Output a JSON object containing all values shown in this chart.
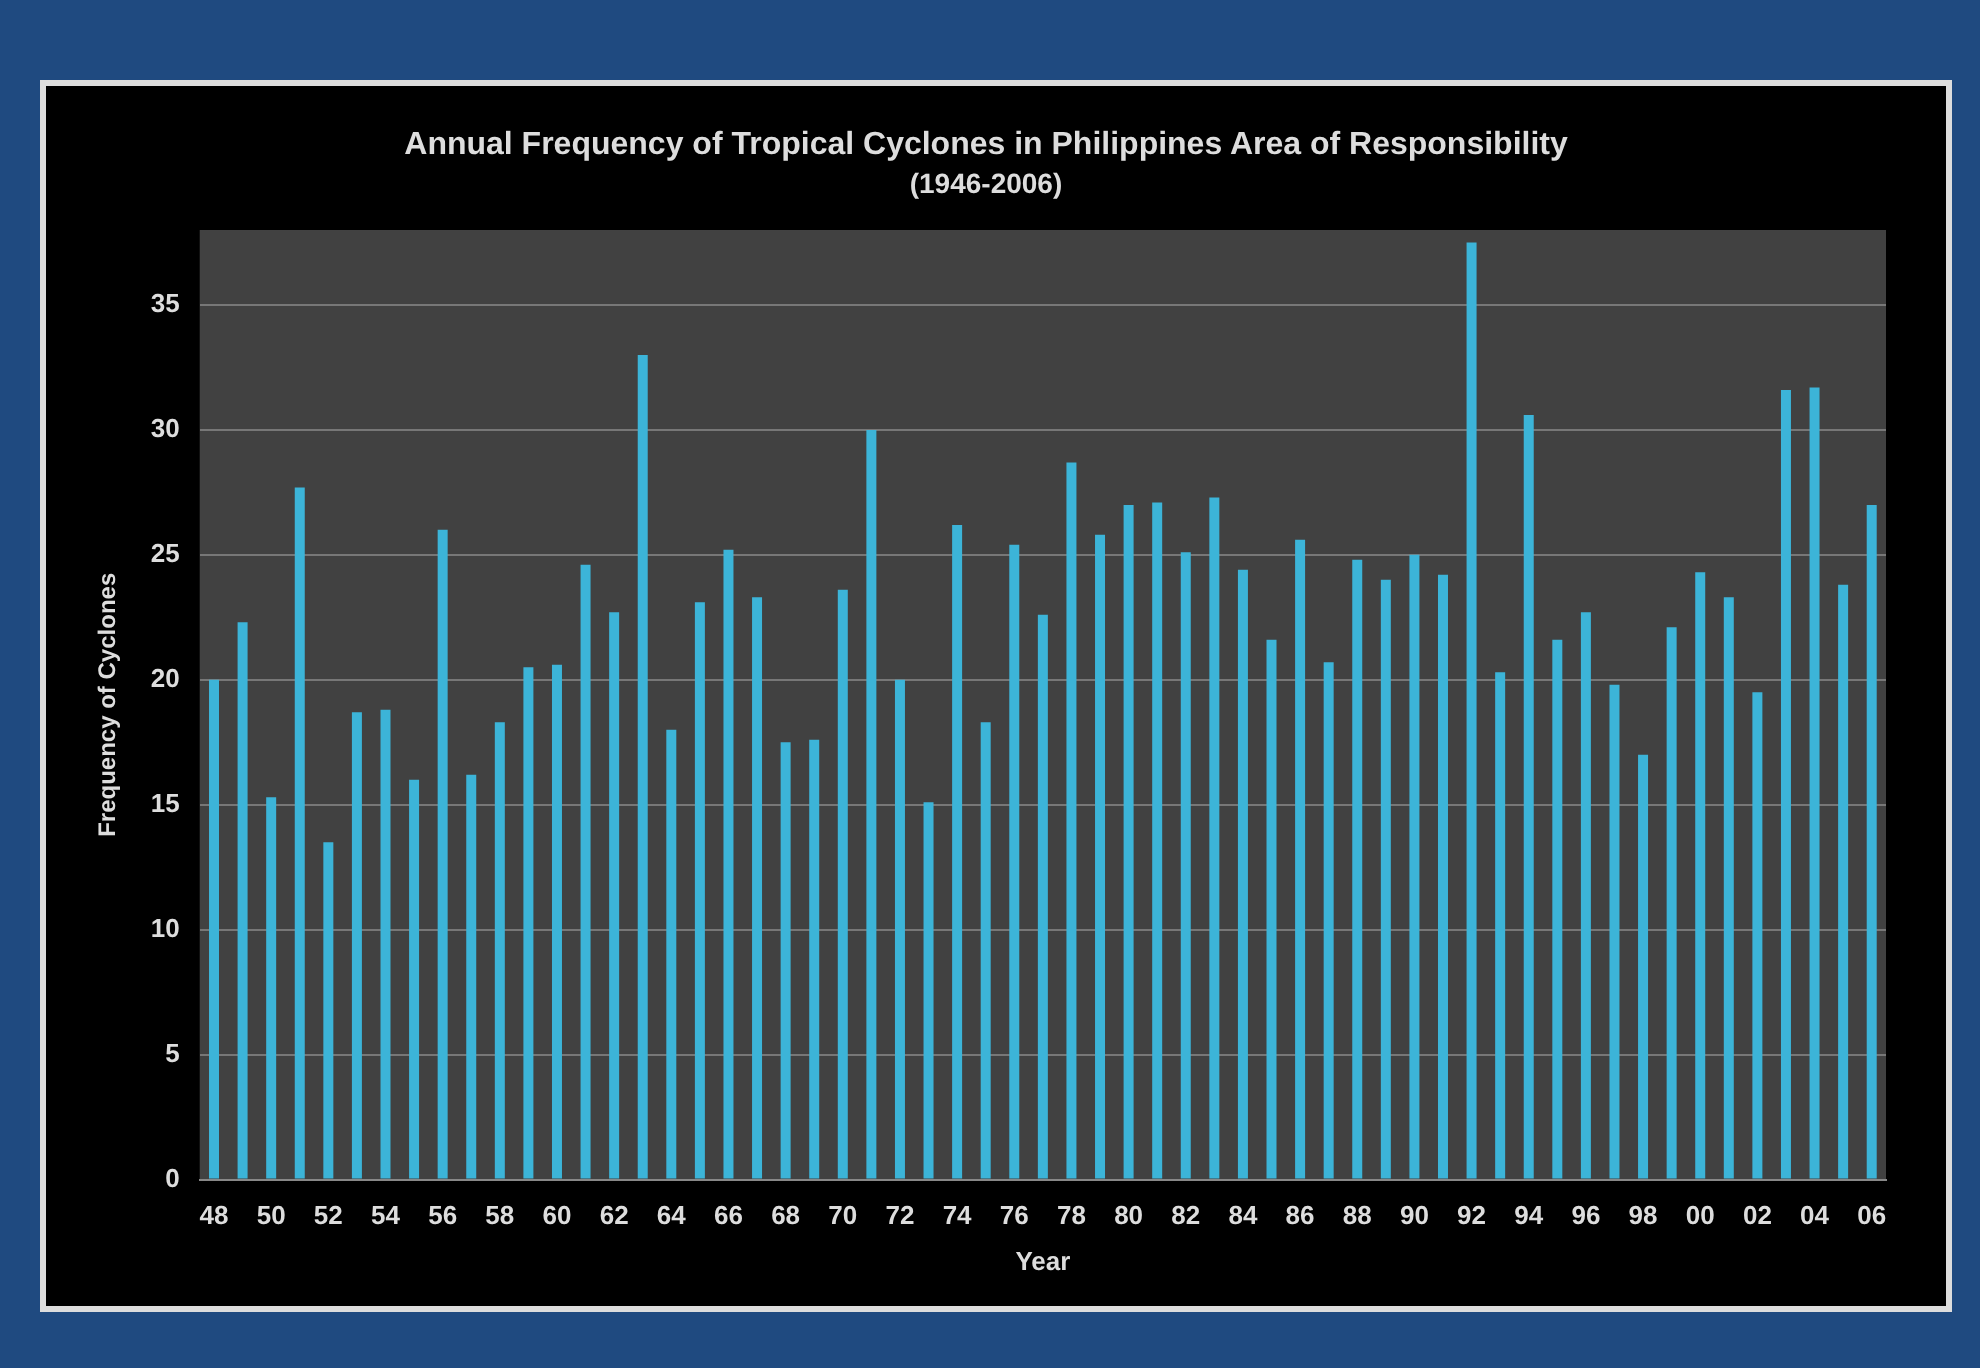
{
  "chart_data": {
    "type": "bar",
    "title": "Annual Frequency of Tropical Cyclones in Philippines Area of Responsibility",
    "subtitle": "(1946-2006)",
    "xlabel": "Year",
    "ylabel": "Frequency of Cyclones",
    "categories": [
      "48",
      null,
      "50",
      null,
      "52",
      null,
      "54",
      null,
      "56",
      null,
      "58",
      null,
      "60",
      null,
      "62",
      null,
      "64",
      null,
      "66",
      null,
      "68",
      null,
      "70",
      null,
      "72",
      null,
      "74",
      null,
      "76",
      null,
      "78",
      null,
      "80",
      null,
      "82",
      null,
      "84",
      null,
      "86",
      null,
      "88",
      null,
      "90",
      null,
      "92",
      null,
      "94",
      null,
      "96",
      null,
      "98",
      null,
      "00",
      null,
      "02",
      null,
      "04",
      null,
      "06"
    ],
    "values": [
      20,
      22.3,
      15.3,
      27.7,
      13.5,
      18.7,
      18.8,
      16,
      26,
      16.2,
      18.3,
      20.5,
      20.6,
      24.6,
      22.7,
      33,
      18,
      23.1,
      25.2,
      23.3,
      17.5,
      17.6,
      23.6,
      30,
      20,
      15.1,
      26.2,
      18.3,
      25.4,
      22.6,
      28.7,
      25.8,
      27,
      27.1,
      25.1,
      27.3,
      24.4,
      21.6,
      25.6,
      20.7,
      24.8,
      24,
      25,
      24.2,
      37.5,
      20.3,
      30.6,
      21.6,
      22.7,
      19.8,
      17,
      22.1,
      24.3,
      23.3,
      19.5,
      31.6,
      31.7,
      23.8,
      27
    ],
    "color": "#3cb4d8",
    "ylim": [
      0,
      38
    ],
    "yticks": [
      0,
      5,
      10,
      15,
      20,
      25,
      30,
      35
    ],
    "grid": "y",
    "legend": false
  }
}
